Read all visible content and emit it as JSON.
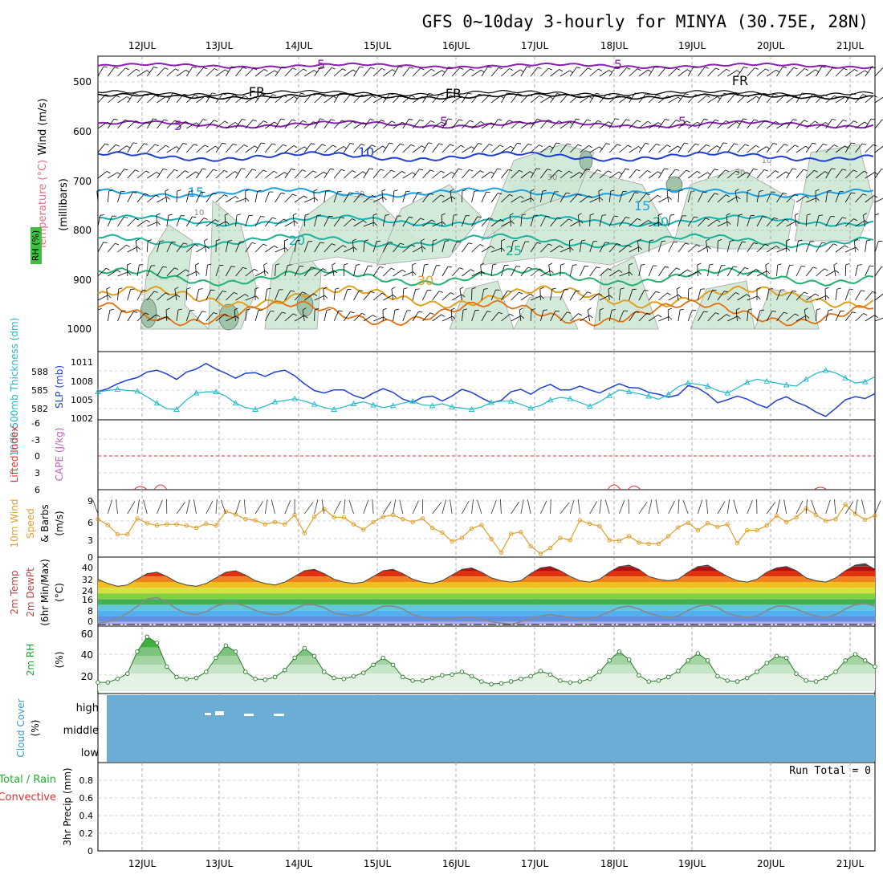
{
  "title": "GFS 0~10day 3-hourly for MINYA (30.75E, 28N)",
  "date_labels": [
    "12JUL",
    "13JUL",
    "14JUL",
    "15JUL",
    "16JUL",
    "17JUL",
    "18JUL",
    "19JUL",
    "20JUL",
    "21JUL"
  ],
  "colors": {
    "purple": "#8a1fb0",
    "black": "#000000",
    "blue": "#1f3fd0",
    "lightblue": "#1aa0e0",
    "teal": "#1ab09a",
    "green": "#20b070",
    "orange": "#e0a020",
    "darkorange": "#e07010",
    "magenta": "#e0108a",
    "rh_fill": "#cfe8d4",
    "cloud": "#6aaed6",
    "thickness": "#20b8c8",
    "slp": "#2040d0",
    "wind10": "#e0a030",
    "li_red": "#e03030"
  },
  "panels": {
    "upper": {
      "ylabel_wind": "Wind (m/s)",
      "ylabel_temp": "Temperature (°C)",
      "ylabel_rh": "RH (%)",
      "ylabel_mb": "(millibars)",
      "ticks": [
        "500",
        "600",
        "700",
        "800",
        "900",
        "1000"
      ],
      "contour_labels": [
        "5",
        "5",
        "FR",
        "FR",
        "FR",
        "5",
        "5",
        "5",
        "10",
        "15",
        "15",
        "20",
        "20",
        "25",
        "30",
        "10",
        "30",
        "30",
        "10",
        "30"
      ]
    },
    "thickness": {
      "ylabel_left": "1000-500mb Thickness (dm)",
      "ylabel_right": "SLP (mb)",
      "ticks_left": [
        "588",
        "585",
        "582"
      ],
      "ticks_right": [
        "1011",
        "1008",
        "1005",
        "1002"
      ]
    },
    "li": {
      "ylabel_left": "Lifted Index",
      "ylabel_right": "CAPE (J/kg)",
      "ticks": [
        "-6",
        "-3",
        "0",
        "3",
        "6"
      ]
    },
    "wind10": {
      "ylabel_left": "10m Wind",
      "ylabel_mid": "Speed",
      "ylabel_right": "& Barbs",
      "ylabel_units": "(m/s)",
      "ticks": [
        "9",
        "6",
        "3",
        "0"
      ]
    },
    "temp2m": {
      "ylabel_1": "2m Temp",
      "ylabel_2": "2m DewPt",
      "ylabel_3": "(6hr Min/Max)",
      "ylabel_units": "(°C)",
      "ticks": [
        "40",
        "32",
        "24",
        "16",
        "8",
        "0"
      ]
    },
    "rh2m": {
      "ylabel": "2m RH",
      "ylabel_units": "(%)",
      "ticks": [
        "60",
        "40",
        "20"
      ]
    },
    "cloud": {
      "ylabel": "Cloud Cover",
      "ylabel_units": "(%)",
      "levels": [
        "high",
        "middle",
        "low"
      ]
    },
    "precip": {
      "ylabel_left": "Total / Rain",
      "ylabel_left2": "Convective",
      "ylabel": "3hr Precip (mm)",
      "ticks": [
        "0.8",
        "0.6",
        "0.4",
        "0.2",
        "0"
      ],
      "run_total": "Run Total = 0"
    }
  },
  "chart_data": [
    {
      "type": "line",
      "name": "1000-500mb Thickness and SLP",
      "x_unit": "3-hourly steps from 11 JUL",
      "series": [
        {
          "name": "SLP (mb)",
          "values": [
            1006.3,
            1006.8,
            1007.6,
            1008.2,
            1008.6,
            1009.5,
            1009.8,
            1009.2,
            1008.3,
            1009.5,
            1010.0,
            1010.9,
            1010.0,
            1009.3,
            1008.5,
            1009.3,
            1009.4,
            1008.8,
            1009.5,
            1009.8,
            1008.9,
            1007.6,
            1006.5,
            1006.1,
            1006.6,
            1006.6,
            1005.7,
            1005.2,
            1006.1,
            1006.8,
            1006.2,
            1005.1,
            1004.6,
            1005.4,
            1005.6,
            1004.8,
            1005.6,
            1006.7,
            1006.2,
            1005.3,
            1004.5,
            1004.9,
            1006.3,
            1006.7,
            1005.9,
            1006.9,
            1007.5,
            1006.6,
            1006.6,
            1007.2,
            1006.6,
            1006.1,
            1006.9,
            1007.6,
            1007.0,
            1006.9,
            1006.2,
            1005.9,
            1005.4,
            1005.8,
            1007.3,
            1006.9,
            1005.9,
            1004.5,
            1005.0,
            1005.6,
            1005.1,
            1004.3,
            1003.7,
            1004.9,
            1005.5,
            1004.6,
            1004.0,
            1003.0,
            1002.3,
            1003.6,
            1005.0,
            1005.5,
            1005.2,
            1006.0
          ]
        },
        {
          "name": "1000-500mb Thickness (dm)",
          "values": [
            584.8,
            585.0,
            585.2,
            585.0,
            584.9,
            584.0,
            583.0,
            582.1,
            582.0,
            583.5,
            584.6,
            584.8,
            584.8,
            584.1,
            583.0,
            582.3,
            582.0,
            582.5,
            583.2,
            583.4,
            583.7,
            583.3,
            582.8,
            582.3,
            582.0,
            582.4,
            582.9,
            583.2,
            582.7,
            582.3,
            582.6,
            583.0,
            583.3,
            582.7,
            582.6,
            582.9,
            582.4,
            582.2,
            582.0,
            582.4,
            583.1,
            583.3,
            583.3,
            582.8,
            582.2,
            582.6,
            583.5,
            583.9,
            583.7,
            583.1,
            582.5,
            583.2,
            584.2,
            585.1,
            584.8,
            584.5,
            584.1,
            583.6,
            584.4,
            585.6,
            586.2,
            586.0,
            585.7,
            585.0,
            584.6,
            585.4,
            586.3,
            586.8,
            586.5,
            586.2,
            585.9,
            585.7,
            586.8,
            587.7,
            588.2,
            587.8,
            587.0,
            586.2,
            586.4,
            587.2
          ]
        }
      ]
    },
    {
      "type": "line",
      "name": "10m Wind Speed (m/s)",
      "series": [
        {
          "name": "10m Wind Speed",
          "values": [
            6.2,
            5.2,
            3.6,
            3.6,
            6.3,
            5.5,
            5.1,
            5.3,
            5.3,
            5.1,
            4.7,
            5.4,
            5.1,
            7.5,
            7.0,
            6.2,
            6.0,
            5.3,
            5.7,
            5.3,
            6.9,
            3.8,
            6.6,
            7.9,
            6.5,
            6.5,
            5.3,
            4.4,
            5.7,
            6.6,
            6.9,
            6.2,
            5.7,
            6.3,
            4.7,
            3.9,
            2.4,
            3.0,
            4.6,
            5.2,
            2.8,
            0.5,
            3.7,
            4.0,
            1.6,
            0.3,
            1.3,
            3.0,
            2.6,
            6.0,
            5.4,
            5.0,
            2.6,
            2.5,
            3.3,
            2.2,
            2.0,
            2.0,
            3.3,
            4.8,
            5.6,
            4.3,
            5.5,
            4.9,
            5.3,
            2.1,
            4.3,
            4.3,
            5.1,
            6.8,
            5.7,
            6.5,
            8.0,
            6.9,
            5.9,
            6.2,
            8.7,
            7.1,
            6.1,
            6.8
          ]
        }
      ]
    },
    {
      "type": "area",
      "name": "2m Temp and DewPt (°C)",
      "series": [
        {
          "name": "2m Temp",
          "values": [
            32,
            29,
            27,
            28,
            32,
            36,
            37,
            34,
            30,
            28,
            27,
            29,
            33,
            37,
            38,
            35,
            31,
            29,
            28,
            30,
            34,
            38,
            39,
            36,
            32,
            30,
            29,
            30,
            34,
            38,
            39,
            36,
            32,
            30,
            29,
            31,
            35,
            39,
            40,
            37,
            33,
            31,
            30,
            31,
            36,
            40,
            41,
            38,
            34,
            31,
            30,
            32,
            37,
            41,
            42,
            39,
            34,
            32,
            31,
            32,
            37,
            41,
            42,
            38,
            34,
            31,
            30,
            32,
            37,
            40,
            41,
            38,
            33,
            31,
            30,
            33,
            38,
            42,
            43,
            39
          ]
        },
        {
          "name": "2m DewPt",
          "values": [
            1,
            2,
            4,
            8,
            13,
            18,
            19,
            16,
            11,
            8,
            7,
            9,
            13,
            15,
            15,
            13,
            10,
            8,
            7,
            8,
            11,
            14,
            14,
            12,
            8,
            7,
            6,
            7,
            10,
            13,
            13,
            11,
            7,
            5,
            4,
            4,
            4,
            5,
            5,
            4,
            2,
            1,
            0,
            2,
            4,
            6,
            7,
            6,
            5,
            4,
            4,
            6,
            9,
            12,
            13,
            11,
            8,
            6,
            5,
            6,
            10,
            13,
            14,
            12,
            8,
            6,
            5,
            6,
            10,
            13,
            13,
            11,
            8,
            6,
            5,
            7,
            11,
            14,
            15,
            13
          ]
        }
      ]
    },
    {
      "type": "area",
      "name": "2m RH (%)",
      "series": [
        {
          "name": "2m RH",
          "values": [
            10,
            10,
            14,
            20,
            45,
            62,
            55,
            28,
            16,
            14,
            15,
            22,
            38,
            52,
            45,
            22,
            14,
            13,
            16,
            24,
            38,
            49,
            40,
            22,
            15,
            14,
            17,
            21,
            30,
            38,
            30,
            16,
            12,
            12,
            15,
            18,
            19,
            22,
            17,
            11,
            8,
            9,
            11,
            14,
            17,
            23,
            19,
            12,
            10,
            11,
            14,
            22,
            35,
            45,
            36,
            18,
            11,
            12,
            16,
            23,
            35,
            43,
            35,
            17,
            12,
            11,
            15,
            22,
            32,
            40,
            38,
            20,
            12,
            11,
            15,
            22,
            35,
            42,
            35,
            28
          ]
        }
      ]
    },
    {
      "type": "area",
      "name": "Cloud Cover (%)",
      "series": [
        {
          "name": "high cloud",
          "values": [
            0,
            0,
            0,
            0,
            0,
            0,
            0,
            0,
            0,
            0,
            0,
            0,
            0,
            0,
            0,
            0,
            0,
            0,
            0,
            0,
            0,
            0,
            0,
            0,
            0,
            0,
            0,
            0,
            0,
            0,
            0,
            0,
            0,
            0,
            0,
            0,
            0,
            0,
            0,
            0,
            0,
            0,
            0,
            0,
            0,
            0,
            0,
            0,
            0,
            0,
            0,
            0,
            0,
            0,
            0,
            0,
            0,
            0,
            0,
            0,
            0,
            0,
            0,
            0,
            0,
            0,
            0,
            0,
            0,
            0,
            0,
            0,
            0,
            0,
            0,
            0,
            0,
            0,
            0,
            0
          ]
        }
      ]
    },
    {
      "type": "bar",
      "name": "3hr Precip (mm)",
      "ylim": [
        0,
        0.9
      ],
      "series": [
        {
          "name": "Total",
          "values": []
        }
      ]
    }
  ]
}
